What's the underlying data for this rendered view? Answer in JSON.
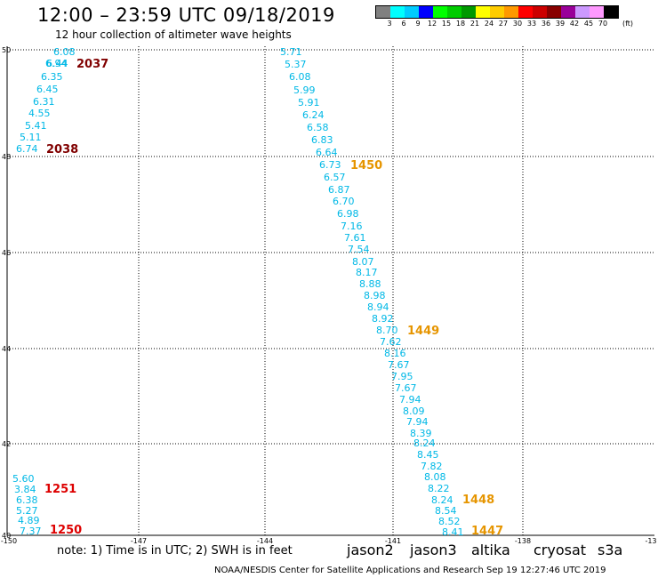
{
  "title": "12:00 – 23:59 UTC 09/18/2019",
  "subtitle": "12 hour collection of altimeter wave heights",
  "legend": {
    "unit": "(ft)",
    "swatches": [
      "#808080",
      "#00ffff",
      "#00ccff",
      "#0000ff",
      "#00ff00",
      "#00cc00",
      "#009900",
      "#ffff00",
      "#ffcc00",
      "#ff9900",
      "#ff0000",
      "#cc0000",
      "#880000",
      "#990099",
      "#cc99ff",
      "#ff99ff",
      "#000000"
    ],
    "labels": [
      "3",
      "6",
      "9",
      "12",
      "15",
      "18",
      "21",
      "24",
      "27",
      "30",
      "33",
      "36",
      "39",
      "42",
      "45",
      "70"
    ]
  },
  "axes": {
    "lat_ticks": [
      "50",
      "48",
      "46",
      "44",
      "42",
      "40"
    ],
    "lon_ticks": [
      "-150",
      "-147",
      "-144",
      "-141",
      "-138",
      "-13"
    ]
  },
  "tracks": [
    {
      "name": "track-west-upper",
      "color": "#00b8e6",
      "pass": "2037",
      "pass_color": "#800000",
      "values": [
        "6.08",
        "6.94",
        "6.44",
        "6.35",
        "6.45",
        "6.31",
        "4.55",
        "5.41",
        "5.11",
        "6.74"
      ]
    },
    {
      "name": "track-west-upper-label2",
      "pass": "2038",
      "pass_color": "#800000"
    },
    {
      "name": "track-central",
      "color": "#00b8e6",
      "values": [
        "5.71",
        "5.37",
        "6.08",
        "5.99",
        "5.91",
        "6.24",
        "6.58",
        "6.83",
        "6.64",
        "6.73",
        "6.57",
        "6.87",
        "6.70",
        "6.98",
        "7.16",
        "7.61",
        "7.54",
        "8.07",
        "8.17",
        "8.88",
        "8.98",
        "8.94",
        "8.92",
        "8.70",
        "7.62",
        "8.16",
        "7.67",
        "7.95",
        "7.67",
        "7.94",
        "8.09",
        "7.94",
        "8.39",
        "8.24",
        "8.45",
        "7.82",
        "8.08",
        "8.22",
        "8.24",
        "8.54",
        "8.52",
        "8.41"
      ]
    },
    {
      "name": "track-west-lower",
      "color": "#00b8e6",
      "values": [
        "5.60",
        "3.84",
        "6.38",
        "5.27",
        "4.89",
        "7.37"
      ]
    }
  ],
  "pass_labels": [
    {
      "text": "2037",
      "color": "#800000"
    },
    {
      "text": "2038",
      "color": "#800000"
    },
    {
      "text": "1450",
      "color": "#e69500"
    },
    {
      "text": "1449",
      "color": "#e69500"
    },
    {
      "text": "1448",
      "color": "#e69500"
    },
    {
      "text": "1447",
      "color": "#e69500"
    },
    {
      "text": "1251",
      "color": "#dd0000"
    },
    {
      "text": "1250",
      "color": "#dd0000"
    }
  ],
  "note": "note: 1) Time is in UTC; 2) SWH is in feet",
  "missions": [
    {
      "text": "jason2",
      "color": "#0000cc"
    },
    {
      "text": "jason3",
      "color": "#00aa00"
    },
    {
      "text": "altika",
      "color": "#ff9900"
    },
    {
      "text": "cryosat",
      "color": "#dd0000"
    },
    {
      "text": "s3a",
      "color": "#aa0000"
    }
  ],
  "footer": "NOAA/NESDIS Center for Satellite Applications and Research   Sep 19 12:27:46 UTC 2019"
}
